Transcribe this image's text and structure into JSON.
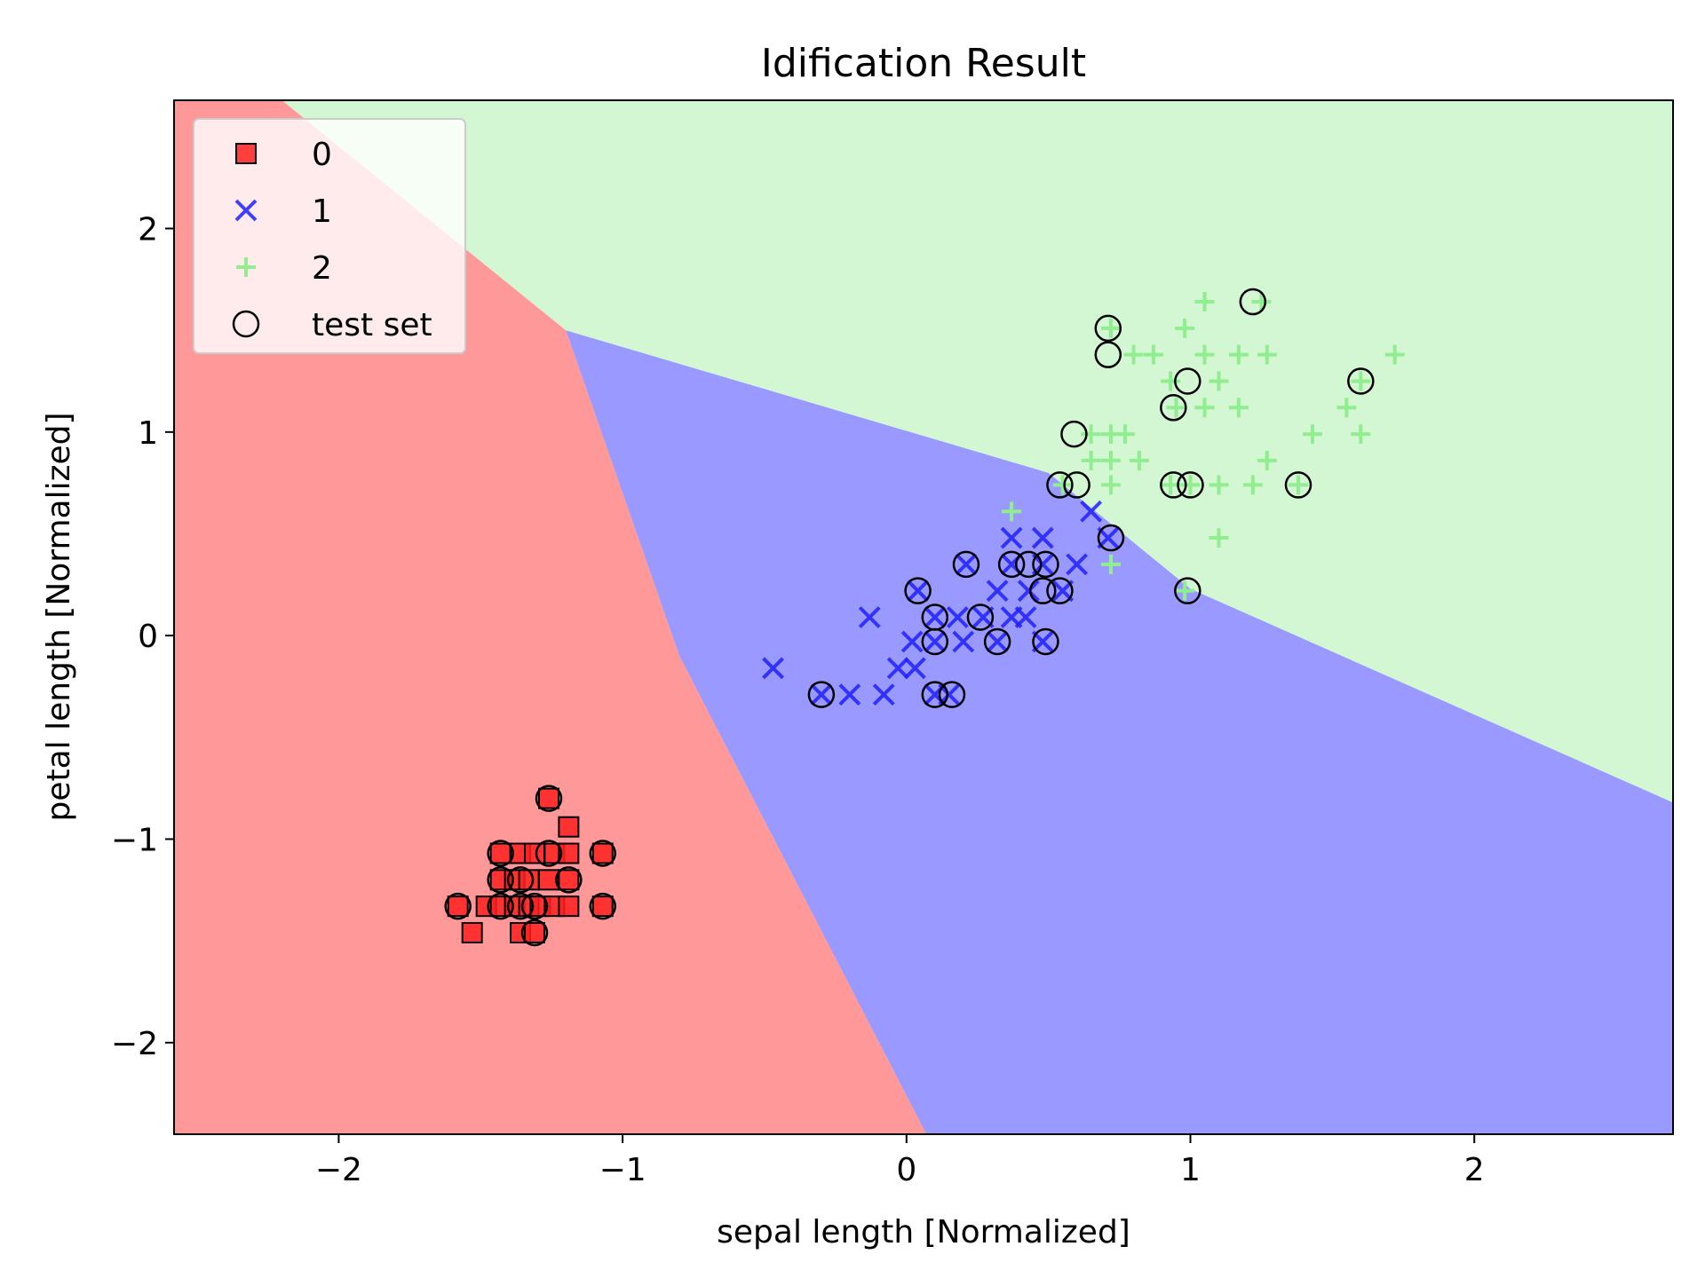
{
  "chart_data": {
    "type": "scatter",
    "title": "Idification Result",
    "xlabel": "sepal length [Normalized]",
    "ylabel": "petal length [Normalized]",
    "xlim": [
      -2.58,
      2.7
    ],
    "ylim": [
      -2.45,
      2.63
    ],
    "xticks": [
      -2,
      -1,
      0,
      1,
      2
    ],
    "yticks": [
      -2,
      -1,
      0,
      1,
      2
    ],
    "xtick_labels": [
      "−2",
      "−1",
      "0",
      "1",
      "2"
    ],
    "ytick_labels": [
      "−2",
      "−1",
      "0",
      "1",
      "2"
    ],
    "grid": false,
    "legend_position": "top-left",
    "regions": [
      {
        "class": "0",
        "color": "#ff9999",
        "polygon": [
          [
            -2.58,
            2.63
          ],
          [
            -2.2,
            2.63
          ],
          [
            -1.2,
            1.5
          ],
          [
            -0.8,
            -0.1
          ],
          [
            0.07,
            -2.45
          ],
          [
            -2.58,
            -2.45
          ]
        ]
      },
      {
        "class": "1",
        "color": "#9999ff",
        "polygon": [
          [
            -1.2,
            1.5
          ],
          [
            0.5,
            0.8
          ],
          [
            1.0,
            0.23
          ],
          [
            2.7,
            -0.82
          ],
          [
            2.7,
            -2.45
          ],
          [
            0.07,
            -2.45
          ],
          [
            -0.8,
            -0.1
          ]
        ]
      },
      {
        "class": "2",
        "color": "#d2f7d2",
        "polygon": [
          [
            -2.2,
            2.63
          ],
          [
            2.7,
            2.63
          ],
          [
            2.7,
            -0.82
          ],
          [
            1.0,
            0.23
          ],
          [
            0.5,
            0.8
          ],
          [
            -1.2,
            1.5
          ]
        ]
      }
    ],
    "series": [
      {
        "name": "0",
        "marker": "square",
        "color": "#ff2020",
        "edge": "#000000",
        "points": [
          [
            -1.26,
            -0.8
          ],
          [
            -1.19,
            -0.94
          ],
          [
            -1.43,
            -1.07
          ],
          [
            -1.36,
            -1.07
          ],
          [
            -1.31,
            -1.07
          ],
          [
            -1.24,
            -1.07
          ],
          [
            -1.19,
            -1.07
          ],
          [
            -1.07,
            -1.07
          ],
          [
            -1.43,
            -1.2
          ],
          [
            -1.38,
            -1.2
          ],
          [
            -1.33,
            -1.2
          ],
          [
            -1.26,
            -1.2
          ],
          [
            -1.19,
            -1.2
          ],
          [
            -1.58,
            -1.33
          ],
          [
            -1.48,
            -1.33
          ],
          [
            -1.43,
            -1.33
          ],
          [
            -1.38,
            -1.33
          ],
          [
            -1.33,
            -1.33
          ],
          [
            -1.29,
            -1.33
          ],
          [
            -1.24,
            -1.33
          ],
          [
            -1.19,
            -1.33
          ],
          [
            -1.07,
            -1.33
          ],
          [
            -1.53,
            -1.46
          ],
          [
            -1.36,
            -1.46
          ],
          [
            -1.31,
            -1.46
          ]
        ]
      },
      {
        "name": "1",
        "marker": "x",
        "color": "#2020ff",
        "points": [
          [
            0.65,
            0.61
          ],
          [
            0.37,
            0.48
          ],
          [
            0.48,
            0.48
          ],
          [
            0.71,
            0.48
          ],
          [
            0.21,
            0.35
          ],
          [
            0.37,
            0.35
          ],
          [
            0.48,
            0.35
          ],
          [
            0.6,
            0.35
          ],
          [
            0.04,
            0.22
          ],
          [
            0.32,
            0.22
          ],
          [
            0.43,
            0.22
          ],
          [
            0.55,
            0.22
          ],
          [
            -0.13,
            0.09
          ],
          [
            0.1,
            0.09
          ],
          [
            0.18,
            0.09
          ],
          [
            0.27,
            0.09
          ],
          [
            0.37,
            0.09
          ],
          [
            0.42,
            0.09
          ],
          [
            0.02,
            -0.03
          ],
          [
            0.1,
            -0.03
          ],
          [
            0.2,
            -0.03
          ],
          [
            0.32,
            -0.03
          ],
          [
            0.48,
            -0.03
          ],
          [
            -0.47,
            -0.16
          ],
          [
            -0.03,
            -0.16
          ],
          [
            0.03,
            -0.16
          ],
          [
            -0.3,
            -0.29
          ],
          [
            -0.2,
            -0.29
          ],
          [
            -0.08,
            -0.29
          ],
          [
            0.1,
            -0.29
          ],
          [
            0.15,
            -0.29
          ]
        ]
      },
      {
        "name": "2",
        "marker": "plus",
        "color": "#90ee90",
        "points": [
          [
            1.05,
            1.64
          ],
          [
            1.25,
            1.64
          ],
          [
            0.72,
            1.51
          ],
          [
            0.98,
            1.51
          ],
          [
            0.8,
            1.38
          ],
          [
            0.87,
            1.38
          ],
          [
            1.05,
            1.38
          ],
          [
            1.17,
            1.38
          ],
          [
            1.27,
            1.38
          ],
          [
            1.72,
            1.38
          ],
          [
            0.93,
            1.25
          ],
          [
            1.1,
            1.25
          ],
          [
            1.6,
            1.25
          ],
          [
            0.95,
            1.12
          ],
          [
            1.05,
            1.12
          ],
          [
            1.17,
            1.12
          ],
          [
            1.55,
            1.12
          ],
          [
            0.65,
            0.99
          ],
          [
            0.72,
            0.99
          ],
          [
            0.77,
            0.99
          ],
          [
            1.43,
            0.99
          ],
          [
            1.6,
            0.99
          ],
          [
            0.65,
            0.86
          ],
          [
            0.72,
            0.86
          ],
          [
            0.82,
            0.86
          ],
          [
            1.27,
            0.86
          ],
          [
            0.55,
            0.74
          ],
          [
            0.72,
            0.74
          ],
          [
            0.93,
            0.74
          ],
          [
            1.0,
            0.74
          ],
          [
            1.1,
            0.74
          ],
          [
            1.22,
            0.74
          ],
          [
            1.38,
            0.74
          ],
          [
            0.37,
            0.61
          ],
          [
            0.72,
            0.35
          ],
          [
            1.1,
            0.48
          ],
          [
            0.98,
            0.22
          ]
        ]
      },
      {
        "name": "test set",
        "marker": "circle",
        "color": "none",
        "edge": "#000000",
        "points": [
          [
            1.22,
            1.64
          ],
          [
            0.71,
            1.51
          ],
          [
            0.71,
            1.38
          ],
          [
            0.99,
            1.25
          ],
          [
            1.6,
            1.25
          ],
          [
            0.94,
            1.12
          ],
          [
            0.59,
            0.99
          ],
          [
            0.54,
            0.74
          ],
          [
            0.6,
            0.74
          ],
          [
            0.94,
            0.74
          ],
          [
            1.0,
            0.74
          ],
          [
            1.38,
            0.74
          ],
          [
            0.72,
            0.48
          ],
          [
            0.99,
            0.22
          ],
          [
            0.21,
            0.35
          ],
          [
            0.37,
            0.35
          ],
          [
            0.43,
            0.35
          ],
          [
            0.49,
            0.35
          ],
          [
            0.04,
            0.22
          ],
          [
            0.48,
            0.22
          ],
          [
            0.54,
            0.22
          ],
          [
            0.1,
            0.09
          ],
          [
            0.26,
            0.09
          ],
          [
            0.1,
            -0.03
          ],
          [
            0.32,
            -0.03
          ],
          [
            0.49,
            -0.03
          ],
          [
            -0.3,
            -0.29
          ],
          [
            0.1,
            -0.29
          ],
          [
            0.16,
            -0.29
          ],
          [
            -1.26,
            -0.8
          ],
          [
            -1.43,
            -1.07
          ],
          [
            -1.26,
            -1.07
          ],
          [
            -1.07,
            -1.07
          ],
          [
            -1.43,
            -1.2
          ],
          [
            -1.36,
            -1.2
          ],
          [
            -1.19,
            -1.2
          ],
          [
            -1.58,
            -1.33
          ],
          [
            -1.43,
            -1.33
          ],
          [
            -1.36,
            -1.33
          ],
          [
            -1.31,
            -1.33
          ],
          [
            -1.07,
            -1.33
          ],
          [
            -1.31,
            -1.46
          ]
        ]
      }
    ],
    "legend": [
      {
        "label": "0",
        "marker": "square"
      },
      {
        "label": "1",
        "marker": "x"
      },
      {
        "label": "2",
        "marker": "plus"
      },
      {
        "label": "test set",
        "marker": "circle"
      }
    ]
  }
}
